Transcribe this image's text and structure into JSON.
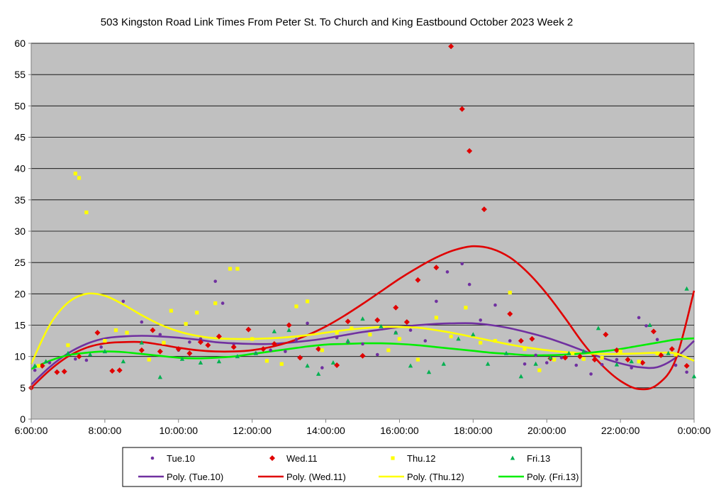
{
  "chart_data": {
    "type": "scatter",
    "title": "503 Kingston Road Link Times From Peter St. To Church and King Eastbound October 2023  Week 2",
    "xlabel": "",
    "ylabel": "",
    "xlim": [
      6,
      24
    ],
    "ylim": [
      0,
      60
    ],
    "x_ticks": [
      6,
      8,
      10,
      12,
      14,
      16,
      18,
      20,
      22,
      24
    ],
    "x_tick_labels": [
      "6:00:00",
      "8:00:00",
      "10:00:00",
      "12:00:00",
      "14:00:00",
      "16:00:00",
      "18:00:00",
      "20:00:00",
      "22:00:00",
      "0:00:00"
    ],
    "y_ticks": [
      0,
      5,
      10,
      15,
      20,
      25,
      30,
      35,
      40,
      45,
      50,
      55,
      60
    ],
    "y_tick_labels": [
      "0",
      "5",
      "10",
      "15",
      "20",
      "25",
      "30",
      "35",
      "40",
      "45",
      "50",
      "55",
      "60"
    ],
    "grid": true,
    "plot_background": "#c0c0c0",
    "legend_position": "bottom",
    "series": [
      {
        "name": "Tue.10",
        "marker": "circle",
        "color": "#7030a0",
        "x": [
          6.1,
          6.5,
          7.2,
          7.5,
          7.9,
          8.5,
          9.0,
          9.5,
          10.0,
          10.3,
          10.6,
          11.0,
          11.2,
          11.5,
          12.1,
          12.5,
          12.9,
          13.2,
          13.5,
          13.9,
          14.3,
          14.6,
          15.0,
          15.4,
          15.9,
          16.3,
          16.7,
          17.0,
          17.3,
          17.7,
          17.9,
          18.2,
          18.6,
          19.0,
          19.4,
          19.7,
          20.0,
          20.4,
          20.8,
          21.2,
          21.5,
          21.9,
          22.3,
          22.5,
          22.7,
          23.0,
          23.5,
          23.8
        ],
        "y": [
          7.8,
          9.0,
          9.6,
          9.4,
          11.5,
          18.8,
          15.5,
          13.5,
          11.0,
          12.3,
          12.8,
          22.0,
          18.5,
          12.0,
          10.5,
          11.0,
          10.8,
          12.7,
          15.3,
          8.2,
          13.0,
          12.3,
          12.0,
          10.3,
          13.8,
          14.2,
          12.5,
          18.8,
          23.5,
          24.8,
          21.5,
          15.8,
          18.2,
          12.5,
          8.8,
          10.2,
          9.0,
          9.8,
          8.6,
          7.2,
          8.7,
          9.5,
          8.2,
          16.2,
          14.9,
          12.7,
          8.6,
          7.5
        ]
      },
      {
        "name": "Wed.11",
        "marker": "diamond",
        "color": "#e00000",
        "x": [
          6.0,
          6.3,
          6.7,
          6.9,
          7.3,
          7.8,
          8.2,
          8.4,
          9.0,
          9.3,
          9.5,
          10.0,
          10.3,
          10.6,
          10.8,
          11.1,
          11.5,
          11.9,
          12.3,
          12.6,
          13.0,
          13.3,
          13.8,
          14.3,
          14.6,
          15.0,
          15.4,
          15.9,
          16.2,
          16.5,
          17.0,
          17.4,
          17.7,
          17.9,
          18.3,
          19.0,
          19.3,
          19.6,
          20.1,
          20.5,
          20.9,
          21.3,
          21.6,
          21.9,
          22.2,
          22.6,
          22.9,
          23.1,
          23.4,
          23.8
        ],
        "y": [
          5.0,
          8.5,
          7.5,
          7.6,
          10.0,
          13.8,
          7.7,
          7.8,
          11.0,
          14.2,
          10.8,
          11.2,
          10.5,
          12.3,
          11.8,
          13.2,
          11.5,
          14.3,
          11.2,
          12.0,
          15.0,
          9.8,
          11.2,
          8.6,
          15.6,
          10.1,
          15.8,
          17.8,
          15.5,
          22.2,
          24.2,
          59.5,
          49.5,
          42.8,
          33.5,
          16.8,
          12.5,
          12.8,
          9.7,
          9.8,
          10.0,
          9.5,
          13.5,
          11.0,
          9.5,
          9.0,
          14.0,
          10.2,
          11.2,
          8.5
        ]
      },
      {
        "name": "Thu.12",
        "marker": "square",
        "color": "#ffff00",
        "x": [
          6.2,
          7.0,
          7.2,
          7.3,
          7.5,
          8.0,
          8.3,
          8.6,
          9.2,
          9.6,
          9.8,
          10.2,
          10.5,
          11.0,
          11.4,
          11.6,
          12.0,
          12.4,
          12.8,
          13.2,
          13.5,
          13.9,
          14.3,
          14.7,
          15.2,
          15.7,
          16.0,
          16.5,
          17.0,
          17.4,
          17.8,
          18.2,
          18.6,
          19.0,
          19.4,
          19.8,
          20.2,
          20.7,
          21.0,
          21.5,
          22.0,
          22.5,
          23.0,
          23.5
        ],
        "y": [
          8.5,
          11.8,
          39.2,
          38.5,
          33.0,
          12.5,
          14.2,
          13.8,
          9.5,
          12.2,
          17.3,
          15.2,
          17.0,
          18.5,
          24.0,
          24.0,
          12.8,
          9.3,
          8.8,
          18.0,
          18.8,
          11.0,
          13.8,
          14.5,
          13.5,
          11.0,
          12.8,
          9.5,
          16.2,
          13.2,
          17.8,
          12.2,
          12.5,
          20.2,
          11.2,
          7.8,
          9.5,
          10.5,
          9.6,
          9.8,
          10.8,
          9.2,
          10.5,
          10.3
        ]
      },
      {
        "name": "Fri.13",
        "marker": "triangle",
        "color": "#00b050",
        "x": [
          6.1,
          6.4,
          7.0,
          7.6,
          8.0,
          8.5,
          9.0,
          9.5,
          10.1,
          10.6,
          11.1,
          11.6,
          12.1,
          12.6,
          13.0,
          13.5,
          13.8,
          14.2,
          14.6,
          15.0,
          15.5,
          15.9,
          16.3,
          16.8,
          17.2,
          17.6,
          18.0,
          18.4,
          18.9,
          19.3,
          19.7,
          20.1,
          20.6,
          21.0,
          21.4,
          21.9,
          22.3,
          22.8,
          23.3,
          23.8,
          24.0
        ],
        "y": [
          8.5,
          9.2,
          10.5,
          10.3,
          10.8,
          9.2,
          12.2,
          6.7,
          9.6,
          9.0,
          9.2,
          10.0,
          10.5,
          14.0,
          14.2,
          8.5,
          7.2,
          9.0,
          12.5,
          16.0,
          14.8,
          13.8,
          8.5,
          7.5,
          8.8,
          12.8,
          13.5,
          8.8,
          10.5,
          6.8,
          8.8,
          9.8,
          10.5,
          10.8,
          14.5,
          8.7,
          9.2,
          15.0,
          10.5,
          20.8,
          6.8
        ]
      }
    ],
    "trendlines": [
      {
        "name": "Poly. (Tue.10)",
        "color": "#7030a0",
        "x": [
          6,
          6.5,
          7,
          7.5,
          8,
          8.5,
          9,
          9.5,
          10,
          10.5,
          11,
          11.5,
          12,
          12.5,
          13,
          13.5,
          14,
          14.5,
          15,
          15.5,
          16,
          16.5,
          17,
          17.5,
          18,
          18.5,
          19,
          19.5,
          20,
          20.5,
          21,
          21.5,
          22,
          22.5,
          23,
          23.5,
          24
        ],
        "y": [
          5.5,
          8.3,
          10.5,
          12.0,
          12.9,
          13.2,
          13.3,
          13.2,
          13.0,
          12.7,
          12.3,
          12.1,
          12.0,
          12.0,
          12.2,
          12.5,
          12.9,
          13.4,
          13.9,
          14.3,
          14.7,
          15.0,
          15.2,
          15.3,
          15.3,
          15.0,
          14.5,
          13.8,
          13.0,
          12.0,
          10.9,
          9.8,
          8.9,
          8.3,
          8.3,
          9.8,
          12.5
        ]
      },
      {
        "name": "Poly. (Wed.11)",
        "color": "#e00000",
        "x": [
          6,
          6.5,
          7,
          7.5,
          8,
          8.5,
          9,
          9.5,
          10,
          10.5,
          11,
          11.5,
          12,
          12.5,
          13,
          13.5,
          14,
          14.5,
          15,
          15.5,
          16,
          16.5,
          17,
          17.5,
          18,
          18.5,
          19,
          19.5,
          20,
          20.5,
          21,
          21.5,
          22,
          22.5,
          23,
          23.5,
          24
        ],
        "y": [
          5.0,
          7.8,
          10.0,
          11.4,
          12.1,
          12.3,
          12.3,
          11.9,
          11.4,
          11.0,
          10.8,
          10.8,
          11.0,
          11.5,
          12.3,
          13.4,
          14.8,
          16.5,
          18.4,
          20.4,
          22.4,
          24.2,
          25.8,
          27.0,
          27.6,
          27.2,
          25.8,
          23.3,
          20.0,
          16.1,
          12.0,
          8.6,
          6.1,
          4.8,
          5.5,
          9.5,
          20.5
        ]
      },
      {
        "name": "Poly. (Thu.12)",
        "color": "#ffff00",
        "x": [
          6,
          6.5,
          7,
          7.5,
          8,
          8.5,
          9,
          9.5,
          10,
          10.5,
          11,
          11.5,
          12,
          12.5,
          13,
          13.5,
          14,
          14.5,
          15,
          15.5,
          16,
          16.5,
          17,
          17.5,
          18,
          18.5,
          19,
          19.5,
          20,
          20.5,
          21,
          21.5,
          22,
          22.5,
          23,
          23.5,
          24
        ],
        "y": [
          8.8,
          15.0,
          18.6,
          20.0,
          19.7,
          18.3,
          16.6,
          15.1,
          14.0,
          13.3,
          12.9,
          12.8,
          12.8,
          12.9,
          13.1,
          13.4,
          13.8,
          14.2,
          14.5,
          14.7,
          14.7,
          14.6,
          14.2,
          13.7,
          13.1,
          12.5,
          11.9,
          11.4,
          11.0,
          10.7,
          10.5,
          10.4,
          10.4,
          10.5,
          10.6,
          10.5,
          9.3
        ]
      },
      {
        "name": "Poly. (Fri.13)",
        "color": "#00ee00",
        "x": [
          6,
          6.5,
          7,
          7.5,
          8,
          8.5,
          9,
          9.5,
          10,
          10.5,
          11,
          11.5,
          12,
          12.5,
          13,
          13.5,
          14,
          14.5,
          15,
          15.5,
          16,
          16.5,
          17,
          17.5,
          18,
          18.5,
          19,
          19.5,
          20,
          20.5,
          21,
          21.5,
          22,
          22.5,
          23,
          23.5,
          24
        ],
        "y": [
          8.0,
          9.3,
          10.2,
          10.6,
          10.8,
          10.7,
          10.4,
          10.1,
          9.8,
          9.7,
          9.8,
          10.0,
          10.4,
          10.8,
          11.2,
          11.6,
          11.9,
          12.0,
          12.1,
          12.1,
          12.0,
          11.8,
          11.5,
          11.2,
          10.9,
          10.6,
          10.4,
          10.2,
          10.2,
          10.3,
          10.5,
          10.8,
          11.2,
          11.7,
          12.2,
          12.7,
          12.9
        ]
      }
    ]
  }
}
